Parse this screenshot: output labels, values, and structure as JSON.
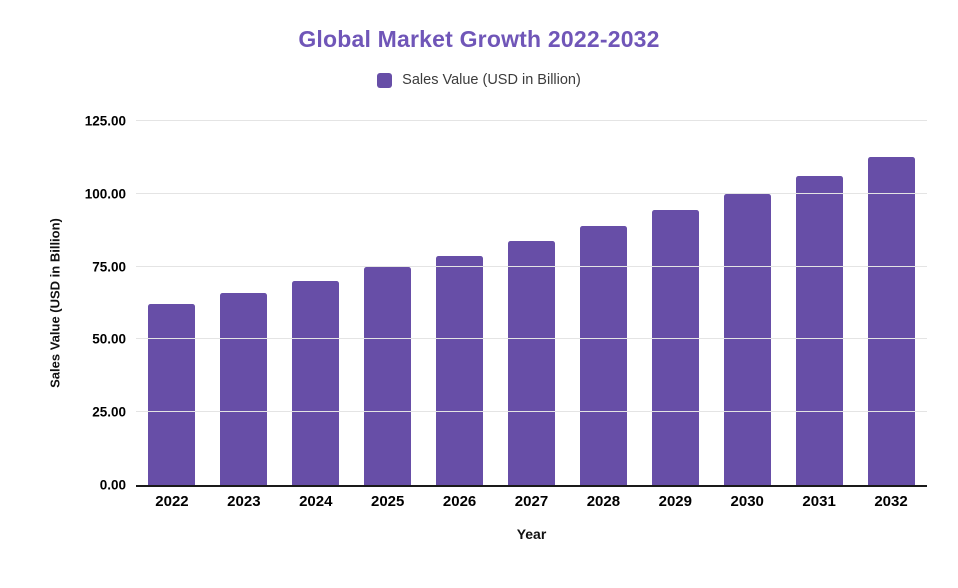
{
  "chart_data": {
    "type": "bar",
    "title": "Global Market Growth 2022-2032",
    "categories": [
      "2022",
      "2023",
      "2024",
      "2025",
      "2026",
      "2027",
      "2028",
      "2029",
      "2030",
      "2031",
      "2032"
    ],
    "series": [
      {
        "name": "Sales Value (USD in Billion)",
        "values": [
          62.0,
          65.8,
          70.1,
          74.7,
          78.7,
          83.8,
          89.0,
          94.5,
          100.0,
          106.0,
          112.7
        ]
      }
    ],
    "xlabel": "Year",
    "ylabel": "Sales Value (USD in Billion)",
    "ylim": [
      0,
      125
    ],
    "ytick_step": 25,
    "ytick_labels": [
      "0.00",
      "25.00",
      "50.00",
      "75.00",
      "100.00",
      "125.00"
    ],
    "grid": true,
    "legend_position": "top",
    "colors": {
      "bars": "#674ea7",
      "title": "#7056b8",
      "legend_text": "#3c3c3c",
      "axis_text": "#000000",
      "axis_label_text": "#111111",
      "gridline": "#e4e4e4",
      "axis_line": "#1a1a1a",
      "background": "#ffffff"
    }
  }
}
